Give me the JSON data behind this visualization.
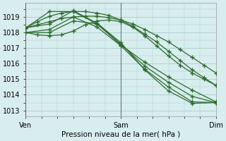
{
  "bg_color": "#d8eeee",
  "grid_color": "#aacccc",
  "line_color": "#2d6a2d",
  "title": "Pression niveau de la mer( hPa )",
  "ylabel_ticks": [
    1013,
    1014,
    1015,
    1016,
    1017,
    1018,
    1019
  ],
  "ylim": [
    1012.6,
    1019.9
  ],
  "xlim": [
    0,
    48
  ],
  "xtick_positions": [
    0,
    24,
    48
  ],
  "xtick_labels": [
    "Ven",
    "Sam",
    "Dim"
  ],
  "series": [
    {
      "x": [
        0,
        3,
        6,
        9,
        12,
        15,
        18,
        21,
        24,
        27,
        30,
        33,
        36,
        39,
        42,
        45,
        48
      ],
      "y": [
        1018.3,
        1018.5,
        1018.7,
        1018.9,
        1019.0,
        1019.05,
        1019.05,
        1018.95,
        1018.8,
        1018.55,
        1018.2,
        1017.8,
        1017.4,
        1016.9,
        1016.4,
        1015.9,
        1015.4
      ]
    },
    {
      "x": [
        0,
        3,
        6,
        9,
        12,
        15,
        18,
        21,
        24,
        27,
        30,
        33,
        36,
        39,
        42,
        45,
        48
      ],
      "y": [
        1018.3,
        1018.7,
        1019.05,
        1019.25,
        1019.35,
        1019.35,
        1019.25,
        1019.1,
        1018.8,
        1018.4,
        1017.9,
        1017.4,
        1016.8,
        1016.2,
        1015.6,
        1015.1,
        1014.6
      ]
    },
    {
      "x": [
        0,
        3,
        6,
        9,
        12,
        15,
        18,
        21,
        24,
        27,
        30,
        33,
        36,
        39,
        42,
        45,
        48
      ],
      "y": [
        1018.0,
        1017.85,
        1017.8,
        1017.85,
        1018.1,
        1018.5,
        1018.75,
        1018.8,
        1018.7,
        1018.35,
        1017.8,
        1017.15,
        1016.5,
        1015.9,
        1015.4,
        1015.0,
        1014.6
      ]
    },
    {
      "x": [
        0,
        6,
        12,
        18,
        24,
        30,
        36,
        42,
        48
      ],
      "y": [
        1018.3,
        1019.35,
        1019.35,
        1018.55,
        1017.2,
        1016.1,
        1015.15,
        1014.3,
        1013.55
      ]
    },
    {
      "x": [
        0,
        6,
        12,
        18,
        24,
        30,
        36,
        42,
        48
      ],
      "y": [
        1018.0,
        1018.0,
        1018.75,
        1018.55,
        1017.25,
        1015.85,
        1014.8,
        1013.9,
        1013.5
      ]
    },
    {
      "x": [
        0,
        6,
        12,
        18,
        24,
        30,
        36,
        42,
        48
      ],
      "y": [
        1018.0,
        1018.2,
        1019.0,
        1018.35,
        1017.15,
        1015.65,
        1014.5,
        1013.55,
        1013.5
      ]
    },
    {
      "x": [
        0,
        6,
        12,
        18,
        24,
        30,
        36,
        42,
        48
      ],
      "y": [
        1018.3,
        1018.55,
        1019.4,
        1018.6,
        1017.35,
        1015.6,
        1014.25,
        1013.45,
        1013.5
      ]
    }
  ],
  "marker": "+",
  "markersize": 4,
  "linewidth": 0.9
}
